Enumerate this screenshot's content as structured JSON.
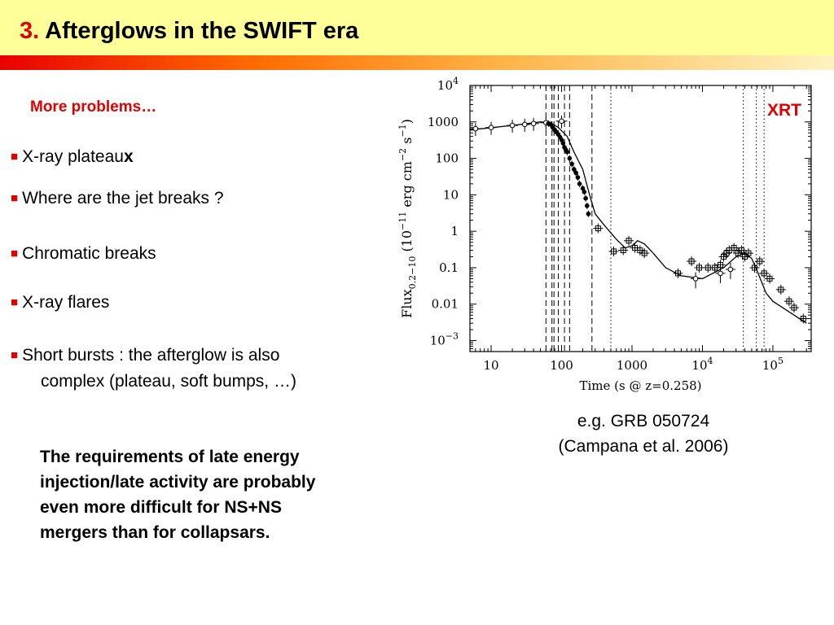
{
  "slide": {
    "title_number": "3.",
    "title_text": "Afterglows in the SWIFT era",
    "subtitle": "More problems…",
    "bullets": {
      "b1": "X-ray plateau",
      "b1_suffix": "x",
      "b2": "Where are the jet breaks ?",
      "b3": "Chromatic breaks",
      "b4": "X-ray flares",
      "b5_line1": "Short bursts : the afterglow is also",
      "b5_line2": "complex (plateau, soft bumps, …)"
    },
    "requirements": [
      "The requirements of late energy",
      "injection/late activity are probably",
      "even more difficult for NS+NS",
      "mergers than for collapsars."
    ],
    "caption_line1": "e.g. GRB 050724",
    "caption_line2": "(Campana et al. 2006)"
  },
  "colors": {
    "accent": "#e00000",
    "title_bg": "#ffff99"
  },
  "chart_data": {
    "type": "scatter",
    "annotation": "XRT",
    "xlabel": "Time  (s @ z=0.258)",
    "ylabel": "Flux0.2-10 (10^-11 erg cm^-2 s^-1)",
    "xscale": "log",
    "yscale": "log",
    "xlim": [
      5,
      350000
    ],
    "ylim": [
      0.0005,
      10000
    ],
    "x_ticks": [
      {
        "v": 10,
        "base": "10"
      },
      {
        "v": 100,
        "base": "100"
      },
      {
        "v": 1000,
        "base": "1000"
      },
      {
        "v": 10000,
        "base": "10",
        "sup": "4"
      },
      {
        "v": 100000,
        "base": "10",
        "sup": "5"
      }
    ],
    "y_ticks": [
      {
        "v": 10000,
        "base": "10",
        "sup": "4"
      },
      {
        "v": 1000,
        "base": "1000"
      },
      {
        "v": 100,
        "base": "100"
      },
      {
        "v": 10,
        "base": "10"
      },
      {
        "v": 1,
        "base": "1"
      },
      {
        "v": 0.1,
        "base": "0.1"
      },
      {
        "v": 0.01,
        "base": "0.01"
      },
      {
        "v": 0.001,
        "base": "10",
        "sup": "−3"
      }
    ],
    "dashed_lines": [
      60,
      73,
      78,
      90,
      110,
      130,
      270
    ],
    "dotted_lines": [
      500,
      38000,
      58000,
      75000
    ],
    "model_curve": [
      [
        5,
        600
      ],
      [
        20,
        800
      ],
      [
        50,
        1000
      ],
      [
        70,
        950
      ],
      [
        90,
        700
      ],
      [
        120,
        400
      ],
      [
        150,
        150
      ],
      [
        200,
        50
      ],
      [
        250,
        10
      ],
      [
        300,
        3
      ],
      [
        400,
        1.5
      ],
      [
        600,
        0.6
      ],
      [
        800,
        0.35
      ],
      [
        1000,
        0.4
      ],
      [
        1200,
        0.55
      ],
      [
        1500,
        0.45
      ],
      [
        2000,
        0.25
      ],
      [
        3000,
        0.1
      ],
      [
        5000,
        0.06
      ],
      [
        10000,
        0.05
      ],
      [
        20000,
        0.1
      ],
      [
        30000,
        0.2
      ],
      [
        40000,
        0.25
      ],
      [
        50000,
        0.18
      ],
      [
        60000,
        0.08
      ],
      [
        80000,
        0.02
      ],
      [
        100000,
        0.012
      ],
      [
        200000,
        0.005
      ],
      [
        300000,
        0.003
      ]
    ],
    "early_points": [
      [
        6,
        650
      ],
      [
        10,
        700
      ],
      [
        20,
        800
      ],
      [
        30,
        850
      ],
      [
        40,
        900
      ],
      [
        60,
        950
      ],
      [
        100,
        1050
      ]
    ],
    "filled_points": [
      [
        65,
        900
      ],
      [
        70,
        850
      ],
      [
        75,
        700
      ],
      [
        80,
        600
      ],
      [
        85,
        520
      ],
      [
        90,
        450
      ],
      [
        95,
        380
      ],
      [
        100,
        320
      ],
      [
        105,
        260
      ],
      [
        110,
        200
      ],
      [
        115,
        170
      ],
      [
        120,
        150
      ],
      [
        130,
        100
      ],
      [
        140,
        70
      ],
      [
        150,
        50
      ],
      [
        160,
        40
      ],
      [
        170,
        30
      ],
      [
        180,
        20
      ],
      [
        200,
        15
      ],
      [
        210,
        12
      ],
      [
        220,
        8
      ],
      [
        230,
        5
      ],
      [
        240,
        3
      ]
    ],
    "square_points": [
      [
        330,
        1.2
      ],
      [
        550,
        0.28
      ],
      [
        750,
        0.3
      ],
      [
        900,
        0.55
      ],
      [
        1100,
        0.35
      ],
      [
        1300,
        0.3
      ],
      [
        1500,
        0.25
      ],
      [
        4500,
        0.07
      ],
      [
        7000,
        0.15
      ],
      [
        9000,
        0.1
      ],
      [
        12000,
        0.1
      ],
      [
        15000,
        0.1
      ],
      [
        18000,
        0.12
      ],
      [
        20000,
        0.2
      ],
      [
        22000,
        0.25
      ],
      [
        24000,
        0.3
      ],
      [
        28000,
        0.35
      ],
      [
        32000,
        0.25
      ],
      [
        36000,
        0.3
      ],
      [
        40000,
        0.2
      ],
      [
        45000,
        0.25
      ],
      [
        55000,
        0.1
      ],
      [
        65000,
        0.15
      ],
      [
        75000,
        0.07
      ],
      [
        90000,
        0.05
      ],
      [
        130000,
        0.025
      ],
      [
        170000,
        0.012
      ],
      [
        200000,
        0.008
      ],
      [
        270000,
        0.004
      ]
    ],
    "circle_points": [
      [
        8000,
        0.05
      ],
      [
        18000,
        0.07
      ],
      [
        25000,
        0.09
      ]
    ]
  }
}
